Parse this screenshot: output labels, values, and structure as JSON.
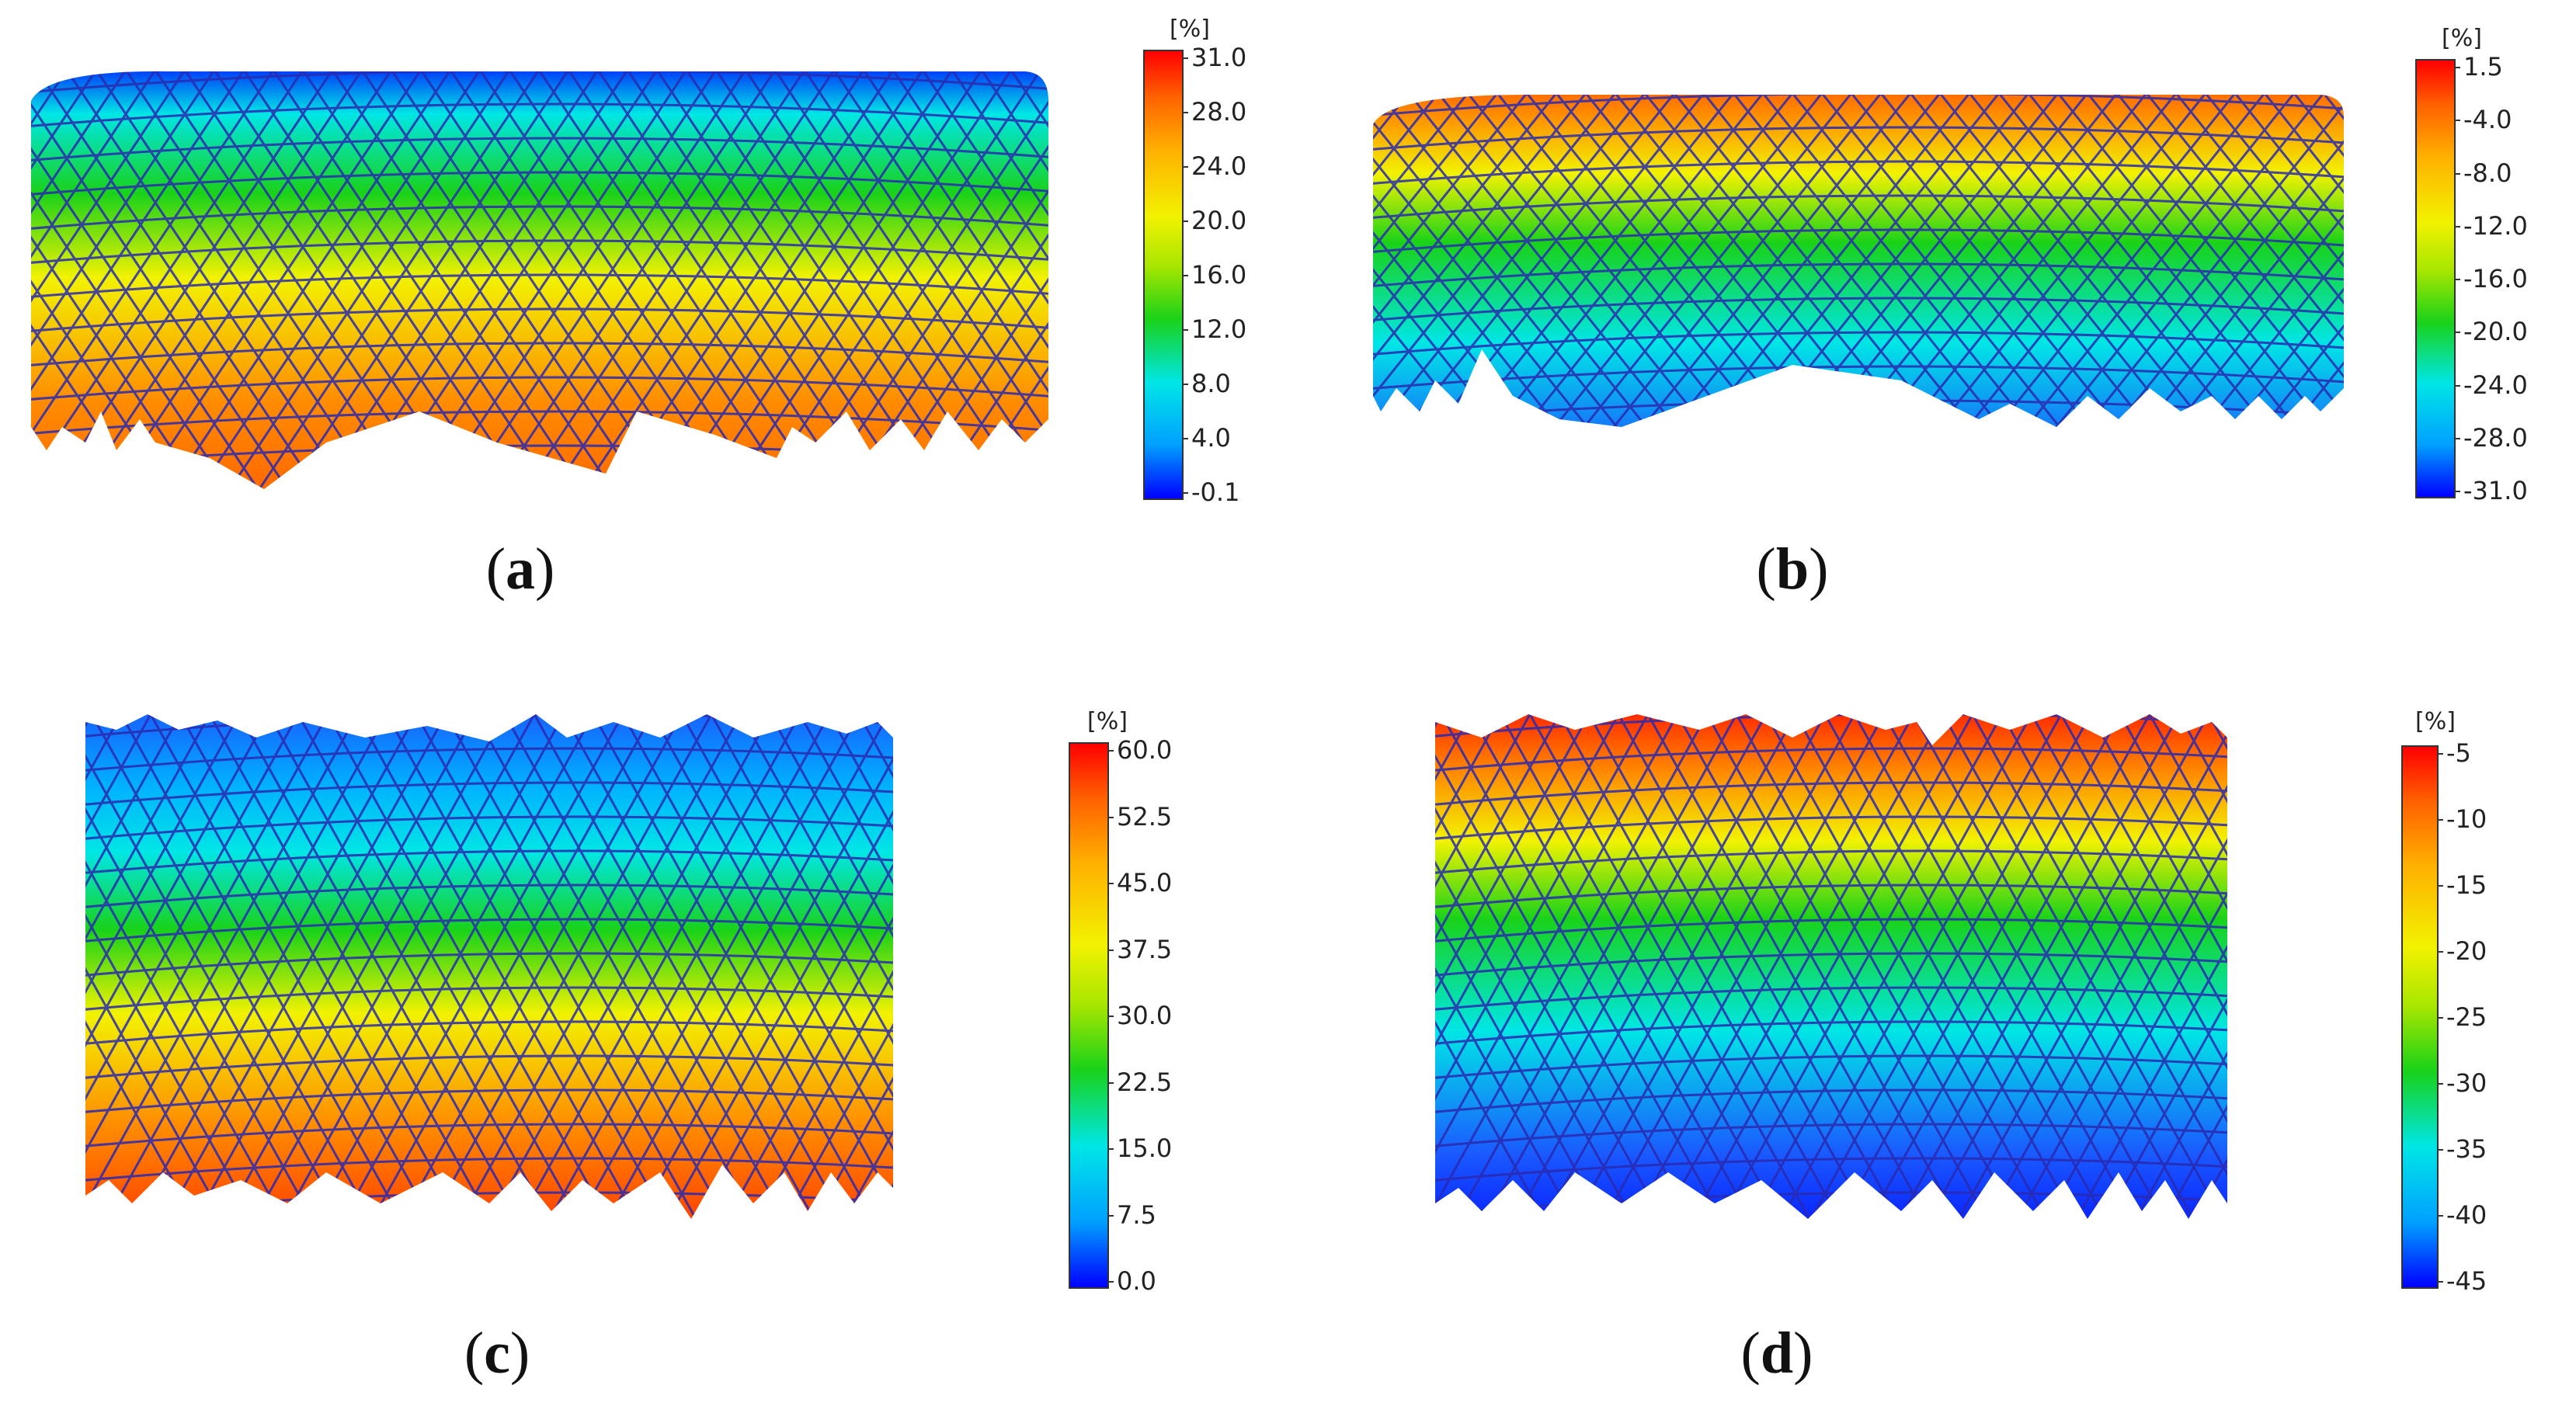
{
  "panels": [
    {
      "id": "a",
      "caption_open": "(",
      "caption_letter": "a",
      "caption_close": ")",
      "unit": "[%]",
      "ticks": [
        "31.0",
        "28.0",
        "24.0",
        "20.0",
        "16.0",
        "12.0",
        "8.0",
        "4.0",
        "-0.1"
      ],
      "gradient": "bottom-to-top",
      "surface_trend": "low-top-high-bottom"
    },
    {
      "id": "b",
      "caption_open": "(",
      "caption_letter": "b",
      "caption_close": ")",
      "unit": "[%]",
      "ticks": [
        "1.5",
        "-4.0",
        "-8.0",
        "-12.0",
        "-16.0",
        "-20.0",
        "-24.0",
        "-28.0",
        "-31.0"
      ],
      "gradient": "bottom-to-top",
      "surface_trend": "high-top-low-bottom"
    },
    {
      "id": "c",
      "caption_open": "(",
      "caption_letter": "c",
      "caption_close": ")",
      "unit": "[%]",
      "ticks": [
        "60.0",
        "52.5",
        "45.0",
        "37.5",
        "30.0",
        "22.5",
        "15.0",
        "7.5",
        "0.0"
      ],
      "gradient": "bottom-to-top",
      "surface_trend": "low-top-high-bottom"
    },
    {
      "id": "d",
      "caption_open": "(",
      "caption_letter": "d",
      "caption_close": ")",
      "unit": "[%]",
      "ticks": [
        "-5",
        "-10",
        "-15",
        "-20",
        "-25",
        "-30",
        "-35",
        "-40",
        "-45"
      ],
      "gradient": "bottom-to-top",
      "surface_trend": "high-top-low-bottom"
    }
  ],
  "colors": {
    "red": "#ff1a00",
    "orange": "#ff8c00",
    "yellow": "#f2f200",
    "green": "#19d219",
    "cyan": "#00e6e6",
    "blue": "#1a5aff",
    "deepblue": "#0000ff",
    "mesh_line": "#2a2ab0"
  }
}
